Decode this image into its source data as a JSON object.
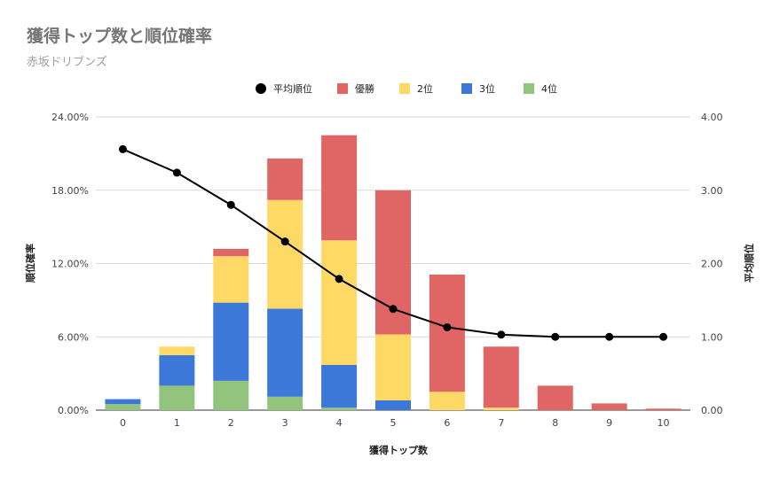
{
  "chart_data": {
    "type": "bar",
    "stacked": true,
    "title": "獲得トップ数と順位確率",
    "subtitle": "赤坂ドリブンズ",
    "xlabel": "獲得トップ数",
    "ylabel_left": "順位確率",
    "ylabel_right": "平均順位",
    "categories": [
      "0",
      "1",
      "2",
      "3",
      "4",
      "5",
      "6",
      "7",
      "8",
      "9",
      "10"
    ],
    "ylim_left": [
      0,
      24
    ],
    "ylim_right": [
      0,
      4
    ],
    "y_ticks_left": [
      "0.00%",
      "6.00%",
      "12.00%",
      "18.00%",
      "24.00%"
    ],
    "y_ticks_right": [
      "0.00",
      "1.00",
      "2.00",
      "3.00",
      "4.00"
    ],
    "grid": true,
    "legend_position": "top",
    "series": [
      {
        "name": "4位",
        "kind": "bar",
        "color": "#93c47d",
        "values": [
          0.5,
          2.0,
          2.4,
          1.1,
          0.2,
          0,
          0,
          0,
          0,
          0,
          0
        ]
      },
      {
        "name": "3位",
        "kind": "bar",
        "color": "#3c78d8",
        "values": [
          0.4,
          2.5,
          6.4,
          7.2,
          3.5,
          0.8,
          0,
          0,
          0,
          0,
          0
        ]
      },
      {
        "name": "2位",
        "kind": "bar",
        "color": "#ffd966",
        "values": [
          0,
          0.7,
          3.8,
          8.9,
          10.2,
          5.4,
          1.5,
          0.2,
          0,
          0,
          0
        ]
      },
      {
        "name": "優勝",
        "kind": "bar",
        "color": "#e06666",
        "values": [
          0,
          0,
          0.6,
          3.4,
          8.6,
          11.8,
          9.6,
          5.0,
          2.0,
          0.55,
          0.12
        ]
      },
      {
        "name": "平均順位",
        "kind": "line",
        "axis": "right",
        "color": "#000000",
        "values": [
          3.56,
          3.24,
          2.8,
          2.3,
          1.79,
          1.38,
          1.13,
          1.03,
          1.0,
          1.0,
          1.0
        ]
      }
    ],
    "legend_order": [
      "平均順位",
      "優勝",
      "2位",
      "3位",
      "4位"
    ]
  }
}
